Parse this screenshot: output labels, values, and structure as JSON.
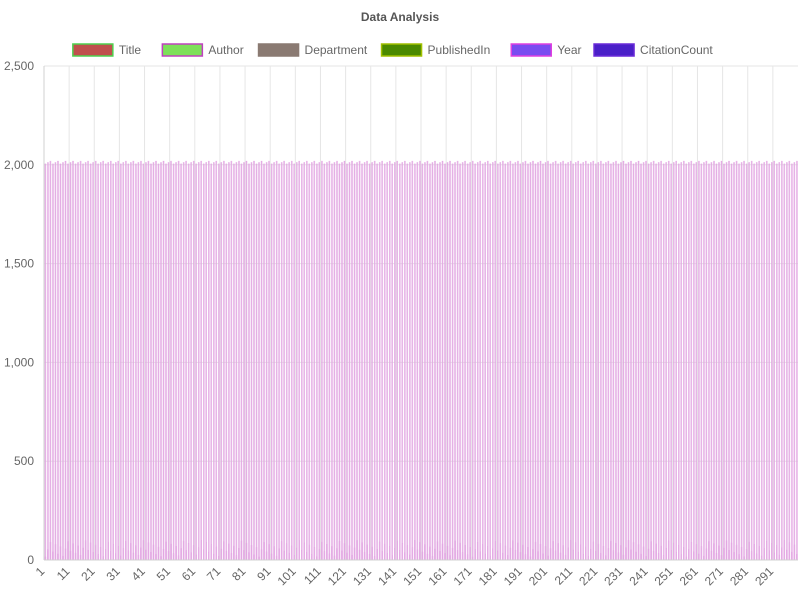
{
  "chart_data": {
    "type": "bar",
    "title": "Data Analysis",
    "xlabel": "",
    "ylabel": "",
    "ylim": [
      0,
      2500
    ],
    "yticks": [
      0,
      500,
      1000,
      1500,
      2000,
      2500
    ],
    "ytick_labels": [
      "0",
      "500",
      "1,000",
      "1,500",
      "2,000",
      "2,500"
    ],
    "x_count": 300,
    "xtick_labels": [
      "1",
      "11",
      "21",
      "31",
      "41",
      "51",
      "61",
      "71",
      "81",
      "91",
      "101",
      "111",
      "121",
      "131",
      "141",
      "151",
      "161",
      "171",
      "181",
      "191",
      "201",
      "211",
      "221",
      "231",
      "241",
      "251",
      "261",
      "271",
      "281",
      "291"
    ],
    "grid": true,
    "legend_position": "top",
    "series": [
      {
        "name": "Title",
        "fill": "#c0504d",
        "stroke": "#4fd04f",
        "values": "none"
      },
      {
        "name": "Author",
        "fill": "#7ee05a",
        "stroke": "#c040c0",
        "values": "none"
      },
      {
        "name": "Department",
        "fill": "#8a7a72",
        "stroke": "#8a7a72",
        "values": "none"
      },
      {
        "name": "PublishedIn",
        "fill": "#4a8a00",
        "stroke": "#a0c000",
        "values": "none"
      },
      {
        "name": "Year",
        "fill": "#7a4cf0",
        "stroke": "#e040e0",
        "values": "approx 2000-2024 for each of 300 records"
      },
      {
        "name": "CitationCount",
        "fill": "#4a20c8",
        "stroke": "#6a2ad8",
        "values": "approx 0-100 for each of 300 records"
      }
    ],
    "bar_outline_color": "#e2a6e2"
  }
}
